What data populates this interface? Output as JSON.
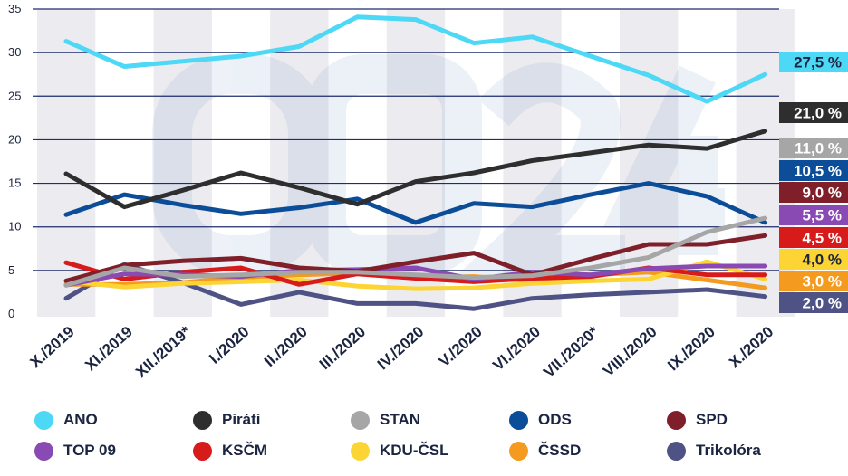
{
  "chart_data": {
    "type": "line",
    "title": "",
    "xlabel": "",
    "ylabel": "",
    "ylim": [
      0,
      35
    ],
    "yticks": [
      0,
      5,
      10,
      15,
      20,
      25,
      30,
      35
    ],
    "grid": true,
    "categories": [
      "X./2019",
      "XI./2019",
      "XII./2019*",
      "I./2020",
      "II./2020",
      "III./2020",
      "IV./2020",
      "V./2020",
      "VI./2020",
      "VII./2020*",
      "VIII./2020",
      "IX./2020",
      "X./2020"
    ],
    "series": [
      {
        "name": "ANO",
        "color": "#4dd8f5",
        "end_label": "27,5 %",
        "label_text_color": "#1b2440",
        "values": [
          31.3,
          28.4,
          29.0,
          29.6,
          30.7,
          34.1,
          33.8,
          31.1,
          31.8,
          29.6,
          27.4,
          24.4,
          27.5
        ]
      },
      {
        "name": "Piráti",
        "color": "#2e2e2e",
        "end_label": "21,0 %",
        "label_text_color": "#ffffff",
        "values": [
          16.1,
          12.3,
          14.2,
          16.2,
          14.5,
          12.6,
          15.2,
          16.2,
          17.6,
          18.5,
          19.4,
          19.0,
          21.0
        ]
      },
      {
        "name": "STAN",
        "color": "#a6a6a6",
        "end_label": "11,0 %",
        "label_text_color": "#ffffff",
        "values": [
          3.3,
          5.3,
          4.3,
          4.5,
          4.8,
          4.8,
          4.5,
          4.2,
          4.4,
          5.3,
          6.5,
          9.4,
          11.0
        ]
      },
      {
        "name": "ODS",
        "color": "#0b4d99",
        "end_label": "10,5 %",
        "label_text_color": "#ffffff",
        "values": [
          11.4,
          13.7,
          12.5,
          11.5,
          12.2,
          13.2,
          10.5,
          12.7,
          12.3,
          13.7,
          15.0,
          13.5,
          10.5
        ]
      },
      {
        "name": "SPD",
        "color": "#7e1f2a",
        "end_label": "9,0 %",
        "label_text_color": "#ffffff",
        "values": [
          3.8,
          5.6,
          6.1,
          6.4,
          5.3,
          4.9,
          6.0,
          7.0,
          4.5,
          6.3,
          8.0,
          8.0,
          9.0
        ]
      },
      {
        "name": "TOP 09",
        "color": "#8a4ab3",
        "end_label": "5,5 %",
        "label_text_color": "#ffffff",
        "values": [
          3.3,
          4.6,
          4.5,
          4.3,
          5.0,
          5.1,
          5.3,
          4.0,
          4.8,
          4.5,
          5.2,
          5.5,
          5.5
        ]
      },
      {
        "name": "KSČM",
        "color": "#d71a1a",
        "end_label": "4,5 %",
        "label_text_color": "#ffffff",
        "values": [
          5.9,
          4.0,
          4.8,
          5.3,
          3.4,
          4.6,
          4.1,
          3.7,
          4.1,
          4.3,
          5.3,
          4.5,
          4.5
        ]
      },
      {
        "name": "KDU-ČSL",
        "color": "#fcd535",
        "end_label": "4,0 %",
        "label_text_color": "#1b2440",
        "values": [
          3.8,
          3.1,
          3.5,
          3.7,
          3.9,
          3.2,
          2.9,
          3.0,
          3.5,
          3.8,
          4.0,
          6.0,
          4.0
        ]
      },
      {
        "name": "ČSSD",
        "color": "#f39a1f",
        "end_label": "3,0 %",
        "label_text_color": "#ffffff",
        "values": [
          3.4,
          3.4,
          3.6,
          4.2,
          4.5,
          4.7,
          4.2,
          4.3,
          3.8,
          4.5,
          4.8,
          3.9,
          3.0
        ]
      },
      {
        "name": "Trikolóra",
        "color": "#4f5285",
        "end_label": "2,0 %",
        "label_text_color": "#ffffff",
        "values": [
          1.8,
          5.7,
          3.6,
          1.1,
          2.5,
          1.2,
          1.2,
          0.6,
          1.8,
          2.2,
          2.5,
          2.8,
          2.0
        ]
      }
    ]
  }
}
